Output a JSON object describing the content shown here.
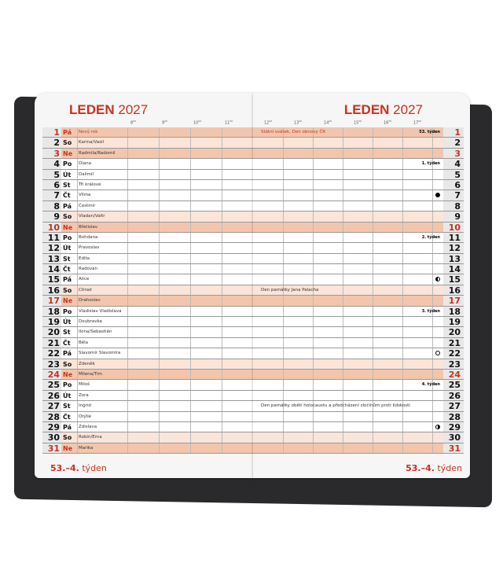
{
  "month_title": {
    "month": "LEDEN",
    "year": "2027"
  },
  "footer": {
    "weeks": "53.–4.",
    "label": "týden"
  },
  "hours_left": [
    "8",
    "9",
    "10",
    "11"
  ],
  "hours_right": [
    "12",
    "13",
    "14",
    "15",
    "16",
    "17"
  ],
  "hour_suffix": "00",
  "colors": {
    "accent": "#c8321e",
    "saturday": "#fbe4d8",
    "sunday": "#f2c6ad"
  },
  "days": [
    {
      "n": "1",
      "wd": "Pá",
      "name": "Nový rok",
      "type": "hol",
      "note": "Státní svátek, Den obnovy ČR",
      "week": "53. týden"
    },
    {
      "n": "2",
      "wd": "So",
      "name": "Karina/Vasil",
      "type": "sat"
    },
    {
      "n": "3",
      "wd": "Ne",
      "name": "Radmila/Radomil",
      "type": "sun"
    },
    {
      "n": "4",
      "wd": "Po",
      "name": "Diana",
      "week": "1. týden"
    },
    {
      "n": "5",
      "wd": "Út",
      "name": "Dalimil"
    },
    {
      "n": "6",
      "wd": "St",
      "name": "Tři králové"
    },
    {
      "n": "7",
      "wd": "Čt",
      "name": "Vilma",
      "moon": "new"
    },
    {
      "n": "8",
      "wd": "Pá",
      "name": "Čestmír"
    },
    {
      "n": "9",
      "wd": "So",
      "name": "Vladan/Valtr",
      "type": "sat"
    },
    {
      "n": "10",
      "wd": "Ne",
      "name": "Břetislav",
      "type": "sun"
    },
    {
      "n": "11",
      "wd": "Po",
      "name": "Bohdana",
      "week": "2. týden"
    },
    {
      "n": "12",
      "wd": "Út",
      "name": "Pravoslav"
    },
    {
      "n": "13",
      "wd": "St",
      "name": "Edita"
    },
    {
      "n": "14",
      "wd": "Čt",
      "name": "Radovan"
    },
    {
      "n": "15",
      "wd": "Pá",
      "name": "Alice",
      "moon": "fq"
    },
    {
      "n": "16",
      "wd": "So",
      "name": "Ctirad",
      "type": "sat",
      "note": "Den památky Jana Palacha"
    },
    {
      "n": "17",
      "wd": "Ne",
      "name": "Drahoslav",
      "type": "sun"
    },
    {
      "n": "18",
      "wd": "Po",
      "name": "Vladislav Vladislava",
      "week": "3. týden"
    },
    {
      "n": "19",
      "wd": "Út",
      "name": "Doubravka"
    },
    {
      "n": "20",
      "wd": "St",
      "name": "Ilona/Sebastián"
    },
    {
      "n": "21",
      "wd": "Čt",
      "name": "Běla"
    },
    {
      "n": "22",
      "wd": "Pá",
      "name": "Slavomír Slavomíra",
      "moon": "full"
    },
    {
      "n": "23",
      "wd": "So",
      "name": "Zdeněk",
      "type": "sat"
    },
    {
      "n": "24",
      "wd": "Ne",
      "name": "Milena/Tim",
      "type": "sun"
    },
    {
      "n": "25",
      "wd": "Po",
      "name": "Miloš",
      "week": "4. týden"
    },
    {
      "n": "26",
      "wd": "Út",
      "name": "Zora"
    },
    {
      "n": "27",
      "wd": "St",
      "name": "Ingrid",
      "note": "Den památky obětí holocaustu a předcházení zločinům proti lidskosti"
    },
    {
      "n": "28",
      "wd": "Čt",
      "name": "Otýlie"
    },
    {
      "n": "29",
      "wd": "Pá",
      "name": "Zdislava",
      "moon": "lq"
    },
    {
      "n": "30",
      "wd": "So",
      "name": "Robin/Erna",
      "type": "sat"
    },
    {
      "n": "31",
      "wd": "Ne",
      "name": "Marika",
      "type": "sun"
    }
  ]
}
